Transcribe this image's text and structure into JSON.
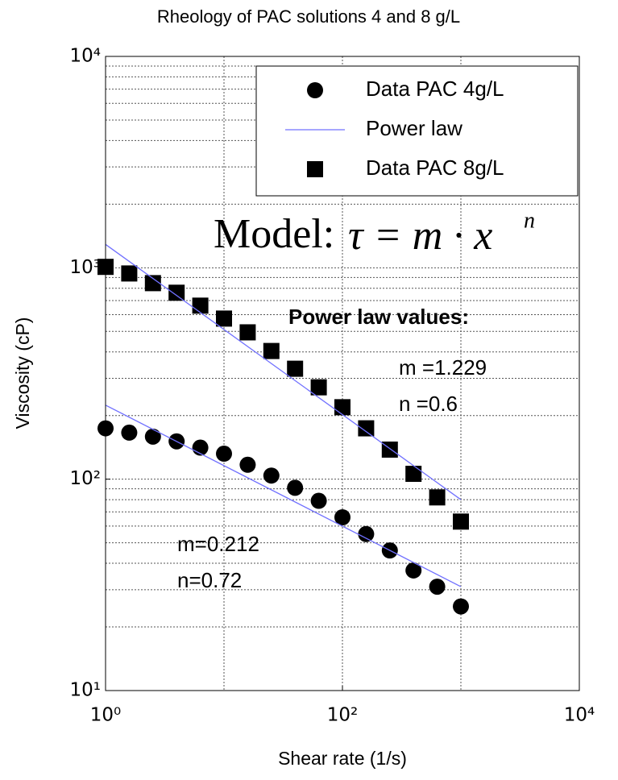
{
  "chart_data": {
    "type": "scatter",
    "title": "Rheology of PAC solutions 4 and 8 g/L",
    "x_label": "Shear rate (1/s)",
    "y_label": "Viscosity (cP)",
    "x_scale": "log",
    "y_scale": "log",
    "xlim": [
      1,
      10000
    ],
    "ylim": [
      10,
      10000
    ],
    "xticks": [
      {
        "value": 1,
        "label": "10⁰"
      },
      {
        "value": 100,
        "label": "10²"
      },
      {
        "value": 10000,
        "label": "10⁴"
      }
    ],
    "x_grid_ticks": [
      10,
      100,
      1000
    ],
    "yticks": [
      {
        "value": 10,
        "label": "10¹"
      },
      {
        "value": 100,
        "label": "10²"
      },
      {
        "value": 1000,
        "label": "10³"
      },
      {
        "value": 10000,
        "label": "10⁴"
      }
    ],
    "y_minor_ticks": [
      20,
      30,
      40,
      50,
      60,
      70,
      80,
      90,
      200,
      300,
      400,
      500,
      600,
      700,
      800,
      900,
      2000,
      3000,
      4000,
      5000,
      6000,
      7000,
      8000,
      9000
    ],
    "grid": true,
    "legend": "upper right",
    "series": [
      {
        "name": "Data PAC 4g/L",
        "marker": "circle",
        "color": "#000000",
        "x": [
          1,
          1.585,
          2.512,
          3.981,
          6.31,
          10,
          15.85,
          25.12,
          39.81,
          63.1,
          100,
          158.5,
          251.2,
          398.1,
          631,
          1000
        ],
        "values": [
          174,
          166,
          159,
          151,
          141,
          132,
          117,
          104,
          91,
          79,
          66,
          55,
          46,
          37,
          31,
          25
        ]
      },
      {
        "name": "Power law",
        "marker": "line",
        "color": "#7070ff",
        "x": [
          1,
          1000
        ],
        "values": [
          224,
          31
        ]
      },
      {
        "name": "Data PAC 8g/L",
        "marker": "square",
        "color": "#000000",
        "x": [
          1,
          1.585,
          2.512,
          3.981,
          6.31,
          10,
          15.85,
          25.12,
          39.81,
          63.1,
          100,
          158.5,
          251.2,
          398.1,
          631,
          1000
        ],
        "values": [
          1010,
          940,
          846,
          762,
          662,
          575,
          495,
          404,
          333,
          272,
          219,
          174,
          138,
          106,
          82,
          63
        ]
      },
      {
        "marker": "line",
        "color": "#7070ff",
        "x": [
          1,
          1000
        ],
        "values": [
          1290,
          80
        ]
      }
    ],
    "annotations": {
      "model_label": "Model:",
      "model_formula": "τ = m · x",
      "model_exponent": "n",
      "power_law_heading": "Power law values:",
      "m_8": "m =1.229",
      "n_8": "n =0.6",
      "m_4": "m=0.212",
      "n_4": "n=0.72"
    }
  }
}
